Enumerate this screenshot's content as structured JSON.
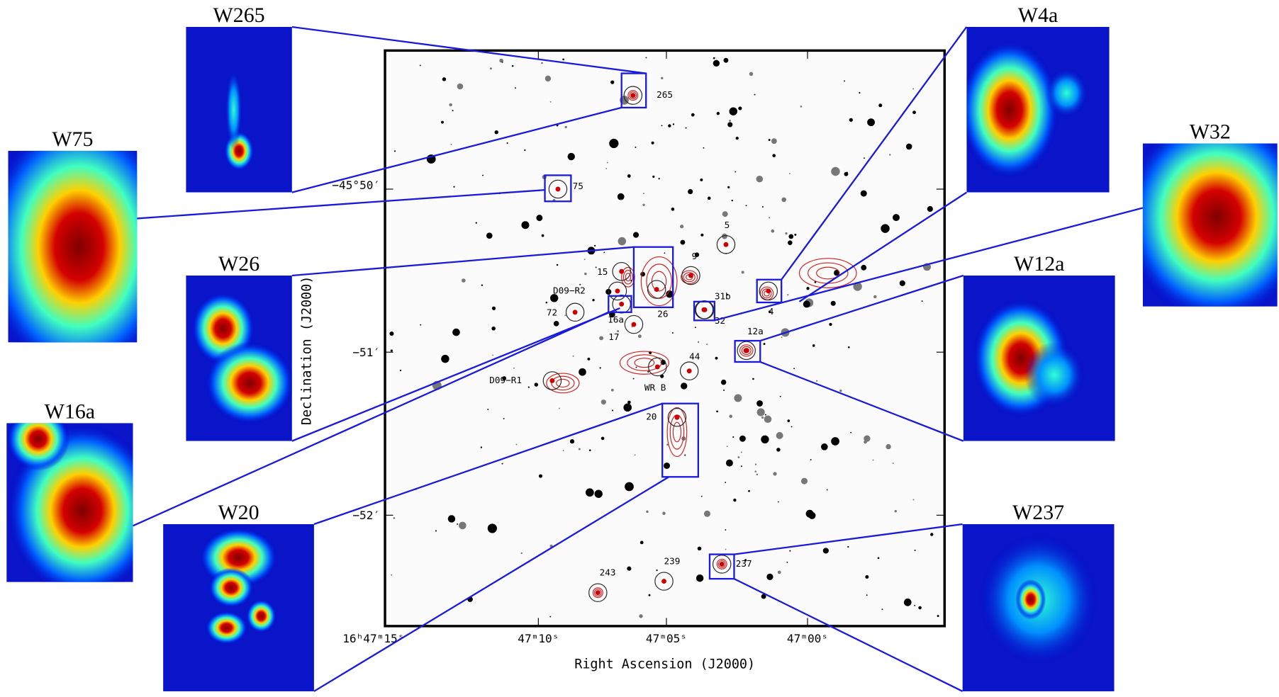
{
  "panels": [
    {
      "label": "W265"
    },
    {
      "label": "W75"
    },
    {
      "label": "W26"
    },
    {
      "label": "W16a"
    },
    {
      "label": "W20"
    },
    {
      "label": "W4a"
    },
    {
      "label": "W32"
    },
    {
      "label": "W12a"
    },
    {
      "label": "W237"
    }
  ],
  "map": {
    "x_axis_label": "Right Ascension (J2000)",
    "y_axis_label": "Declination (J2000)",
    "x_tick_labels": [
      "16ʰ47ᵐ15ˢ",
      "47ᵐ10ˢ",
      "47ᵐ05ˢ",
      "47ᵐ00ˢ"
    ],
    "y_tick_labels": [
      "−45°50′",
      "−51′",
      "−52′"
    ],
    "source_labels": [
      "265",
      "75",
      "5",
      "9",
      "15",
      "D09−R2",
      "31b",
      "72",
      "16a",
      "26",
      "32",
      "4",
      "17",
      "12a",
      "44",
      "D09−R1",
      "WR B",
      "20",
      "243",
      "239",
      "237"
    ]
  }
}
